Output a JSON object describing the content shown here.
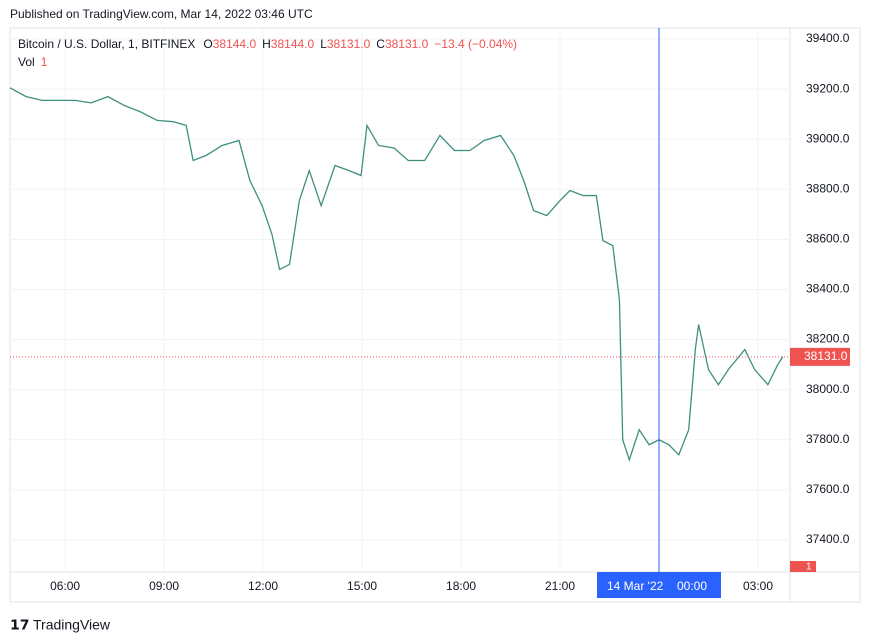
{
  "header": "Published on TradingView.com, Mar 14, 2022 03:46 UTC",
  "footer": "TradingView",
  "chart_data": {
    "type": "line",
    "symbol": "Bitcoin / U.S. Dollar, 1, BITFINEX",
    "ohlc": [
      [
        "O",
        "38144.0"
      ],
      [
        "H",
        "38144.0"
      ],
      [
        "L",
        "38131.0"
      ],
      [
        "C",
        "38131.0"
      ]
    ],
    "change": "−13.4 (−0.04%)",
    "volume_name": "Vol",
    "volume_value": "1",
    "series": [
      {
        "name": "BTCUSD",
        "color": "#3f8f7f",
        "x": [
          4.33,
          4.82,
          5.3,
          5.79,
          6.3,
          6.79,
          7.3,
          7.79,
          8.27,
          8.79,
          9.27,
          9.67,
          9.88,
          10.27,
          10.76,
          11.27,
          11.6,
          11.97,
          12.27,
          12.5,
          12.8,
          13.1,
          13.4,
          13.76,
          14.18,
          14.6,
          14.97,
          15.15,
          15.5,
          15.97,
          16.4,
          16.9,
          17.36,
          17.8,
          18.27,
          18.7,
          19.2,
          19.6,
          19.9,
          20.2,
          20.6,
          21.0,
          21.3,
          21.7,
          22.1,
          22.3,
          22.6,
          22.8,
          22.9,
          23.1,
          23.4,
          23.7,
          24.0,
          24.3,
          24.6,
          24.9,
          25.1,
          25.2,
          25.5,
          25.8,
          26.1,
          26.6,
          26.9,
          27.3,
          27.6,
          27.75
        ],
        "values": [
          39205,
          39170,
          39155,
          39155,
          39155,
          39145,
          39170,
          39135,
          39110,
          39075,
          39070,
          39055,
          38915,
          38935,
          38975,
          38995,
          38835,
          38735,
          38620,
          38480,
          38500,
          38755,
          38875,
          38735,
          38895,
          38875,
          38855,
          39055,
          38975,
          38965,
          38915,
          38915,
          39015,
          38955,
          38955,
          38995,
          39015,
          38935,
          38835,
          38715,
          38695,
          38755,
          38795,
          38775,
          38775,
          38595,
          38575,
          38360,
          37800,
          37720,
          37840,
          37780,
          37800,
          37780,
          37740,
          37840,
          38160,
          38260,
          38080,
          38020,
          38080,
          38160,
          38080,
          38020,
          38100,
          38131
        ]
      }
    ],
    "xlim": [
      4.33,
      27.97
    ],
    "xticks": [
      {
        "value": 6,
        "label": "06:00"
      },
      {
        "value": 9,
        "label": "09:00"
      },
      {
        "value": 12,
        "label": "12:00"
      },
      {
        "value": 15,
        "label": "15:00"
      },
      {
        "value": 18,
        "label": "18:00"
      },
      {
        "value": 21,
        "label": "21:00"
      },
      {
        "value": 27,
        "label": "03:00"
      }
    ],
    "ylim": [
      37272,
      39444
    ],
    "yticks": [
      {
        "value": 37400,
        "label": "37400.0"
      },
      {
        "value": 37600,
        "label": "37600.0"
      },
      {
        "value": 37800,
        "label": "37800.0"
      },
      {
        "value": 38000,
        "label": "38000.0"
      },
      {
        "value": 38200,
        "label": "38200.0"
      },
      {
        "value": 38400,
        "label": "38400.0"
      },
      {
        "value": 38600,
        "label": "38600.0"
      },
      {
        "value": 38800,
        "label": "38800.0"
      },
      {
        "value": 39000,
        "label": "39000.0"
      },
      {
        "value": 39200,
        "label": "39200.0"
      },
      {
        "value": 39400,
        "label": "39400.0"
      }
    ],
    "last_price": {
      "value": 38131,
      "label": "38131.0"
    },
    "crosshair": {
      "value": 24,
      "date": "14 Mar '22",
      "time": "00:00"
    },
    "grid": true
  }
}
